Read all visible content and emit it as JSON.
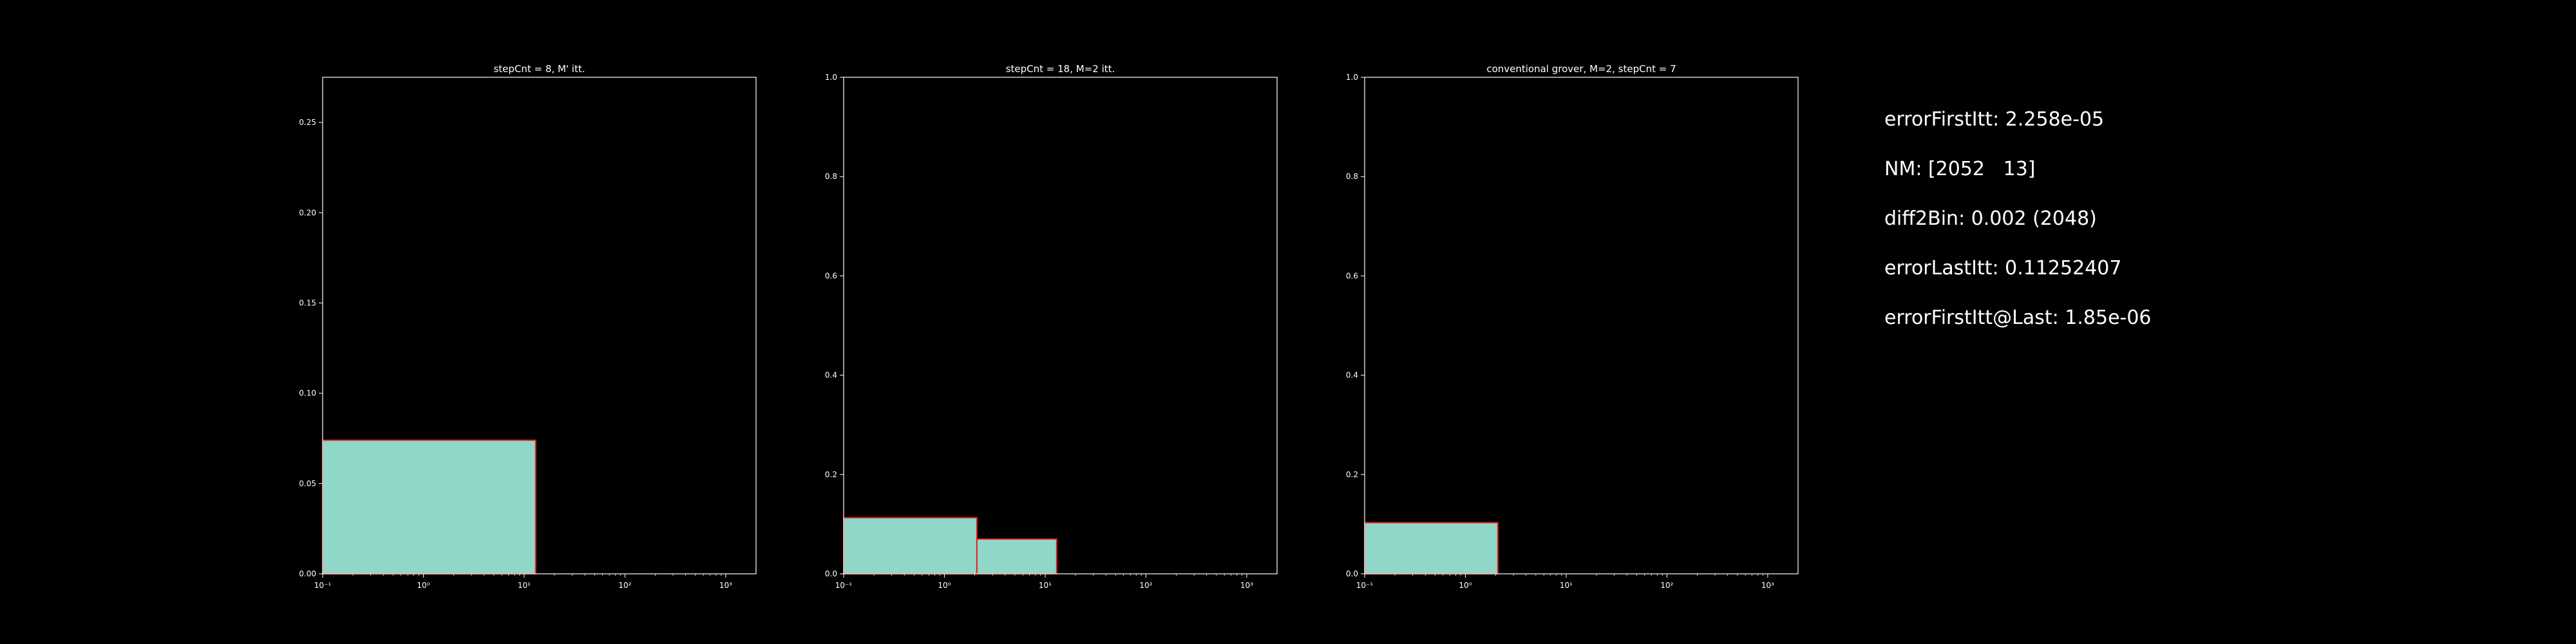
{
  "colors": {
    "background": "#000000",
    "fill": "#8fd7c8",
    "edge": "#e02020",
    "axis": "#ffffff"
  },
  "chart_data": [
    {
      "type": "histogram",
      "title": "stepCnt = 8, M' itt.",
      "xscale": "log",
      "xlim": [
        0.1,
        2000
      ],
      "ylim": [
        0,
        0.275
      ],
      "xticks": [
        {
          "value": 0.1,
          "label": "10⁻¹"
        },
        {
          "value": 1,
          "label": "10⁰"
        },
        {
          "value": 10,
          "label": "10¹"
        },
        {
          "value": 100,
          "label": "10²"
        },
        {
          "value": 1000,
          "label": "10³"
        }
      ],
      "yticks": [
        0.0,
        0.05,
        0.1,
        0.15,
        0.2,
        0.25
      ],
      "ytick_labels": [
        "0.00",
        "0.05",
        "0.10",
        "0.15",
        "0.20",
        "0.25"
      ],
      "bins": [
        {
          "x0": 0.1,
          "x1": 13,
          "value": 0.074
        },
        {
          "x0": 13,
          "x1": 2000,
          "value": 0.0
        }
      ]
    },
    {
      "type": "histogram",
      "title": "stepCnt = 18, M=2 itt.",
      "xscale": "log",
      "xlim": [
        0.1,
        2000
      ],
      "ylim": [
        0,
        1.0
      ],
      "xticks": [
        {
          "value": 0.1,
          "label": "10⁻¹"
        },
        {
          "value": 1,
          "label": "10⁰"
        },
        {
          "value": 10,
          "label": "10¹"
        },
        {
          "value": 100,
          "label": "10²"
        },
        {
          "value": 1000,
          "label": "10³"
        }
      ],
      "yticks": [
        0.0,
        0.2,
        0.4,
        0.6,
        0.8,
        1.0
      ],
      "ytick_labels": [
        "0.0",
        "0.2",
        "0.4",
        "0.6",
        "0.8",
        "1.0"
      ],
      "bins": [
        {
          "x0": 0.1,
          "x1": 2.1,
          "value": 0.113
        },
        {
          "x0": 2.1,
          "x1": 13,
          "value": 0.07
        },
        {
          "x0": 13,
          "x1": 2000,
          "value": 0.0
        }
      ]
    },
    {
      "type": "histogram",
      "title": "conventional grover, M=2, stepCnt = 7",
      "xscale": "log",
      "xlim": [
        0.1,
        2000
      ],
      "ylim": [
        0,
        1.0
      ],
      "xticks": [
        {
          "value": 0.1,
          "label": "10⁻¹"
        },
        {
          "value": 1,
          "label": "10⁰"
        },
        {
          "value": 10,
          "label": "10¹"
        },
        {
          "value": 100,
          "label": "10²"
        },
        {
          "value": 1000,
          "label": "10³"
        }
      ],
      "yticks": [
        0.0,
        0.2,
        0.4,
        0.6,
        0.8,
        1.0
      ],
      "ytick_labels": [
        "0.0",
        "0.2",
        "0.4",
        "0.6",
        "0.8",
        "1.0"
      ],
      "bins": [
        {
          "x0": 0.1,
          "x1": 2.1,
          "value": 0.103
        },
        {
          "x0": 2.1,
          "x1": 2000,
          "value": 0.0
        }
      ]
    }
  ],
  "stats": [
    "errorFirstItt: 2.258e-05",
    "NM: [2052   13]",
    "diff2Bin: 0.002 (2048)",
    "errorLastItt: 0.11252407",
    "errorFirstItt@Last: 1.85e-06"
  ]
}
